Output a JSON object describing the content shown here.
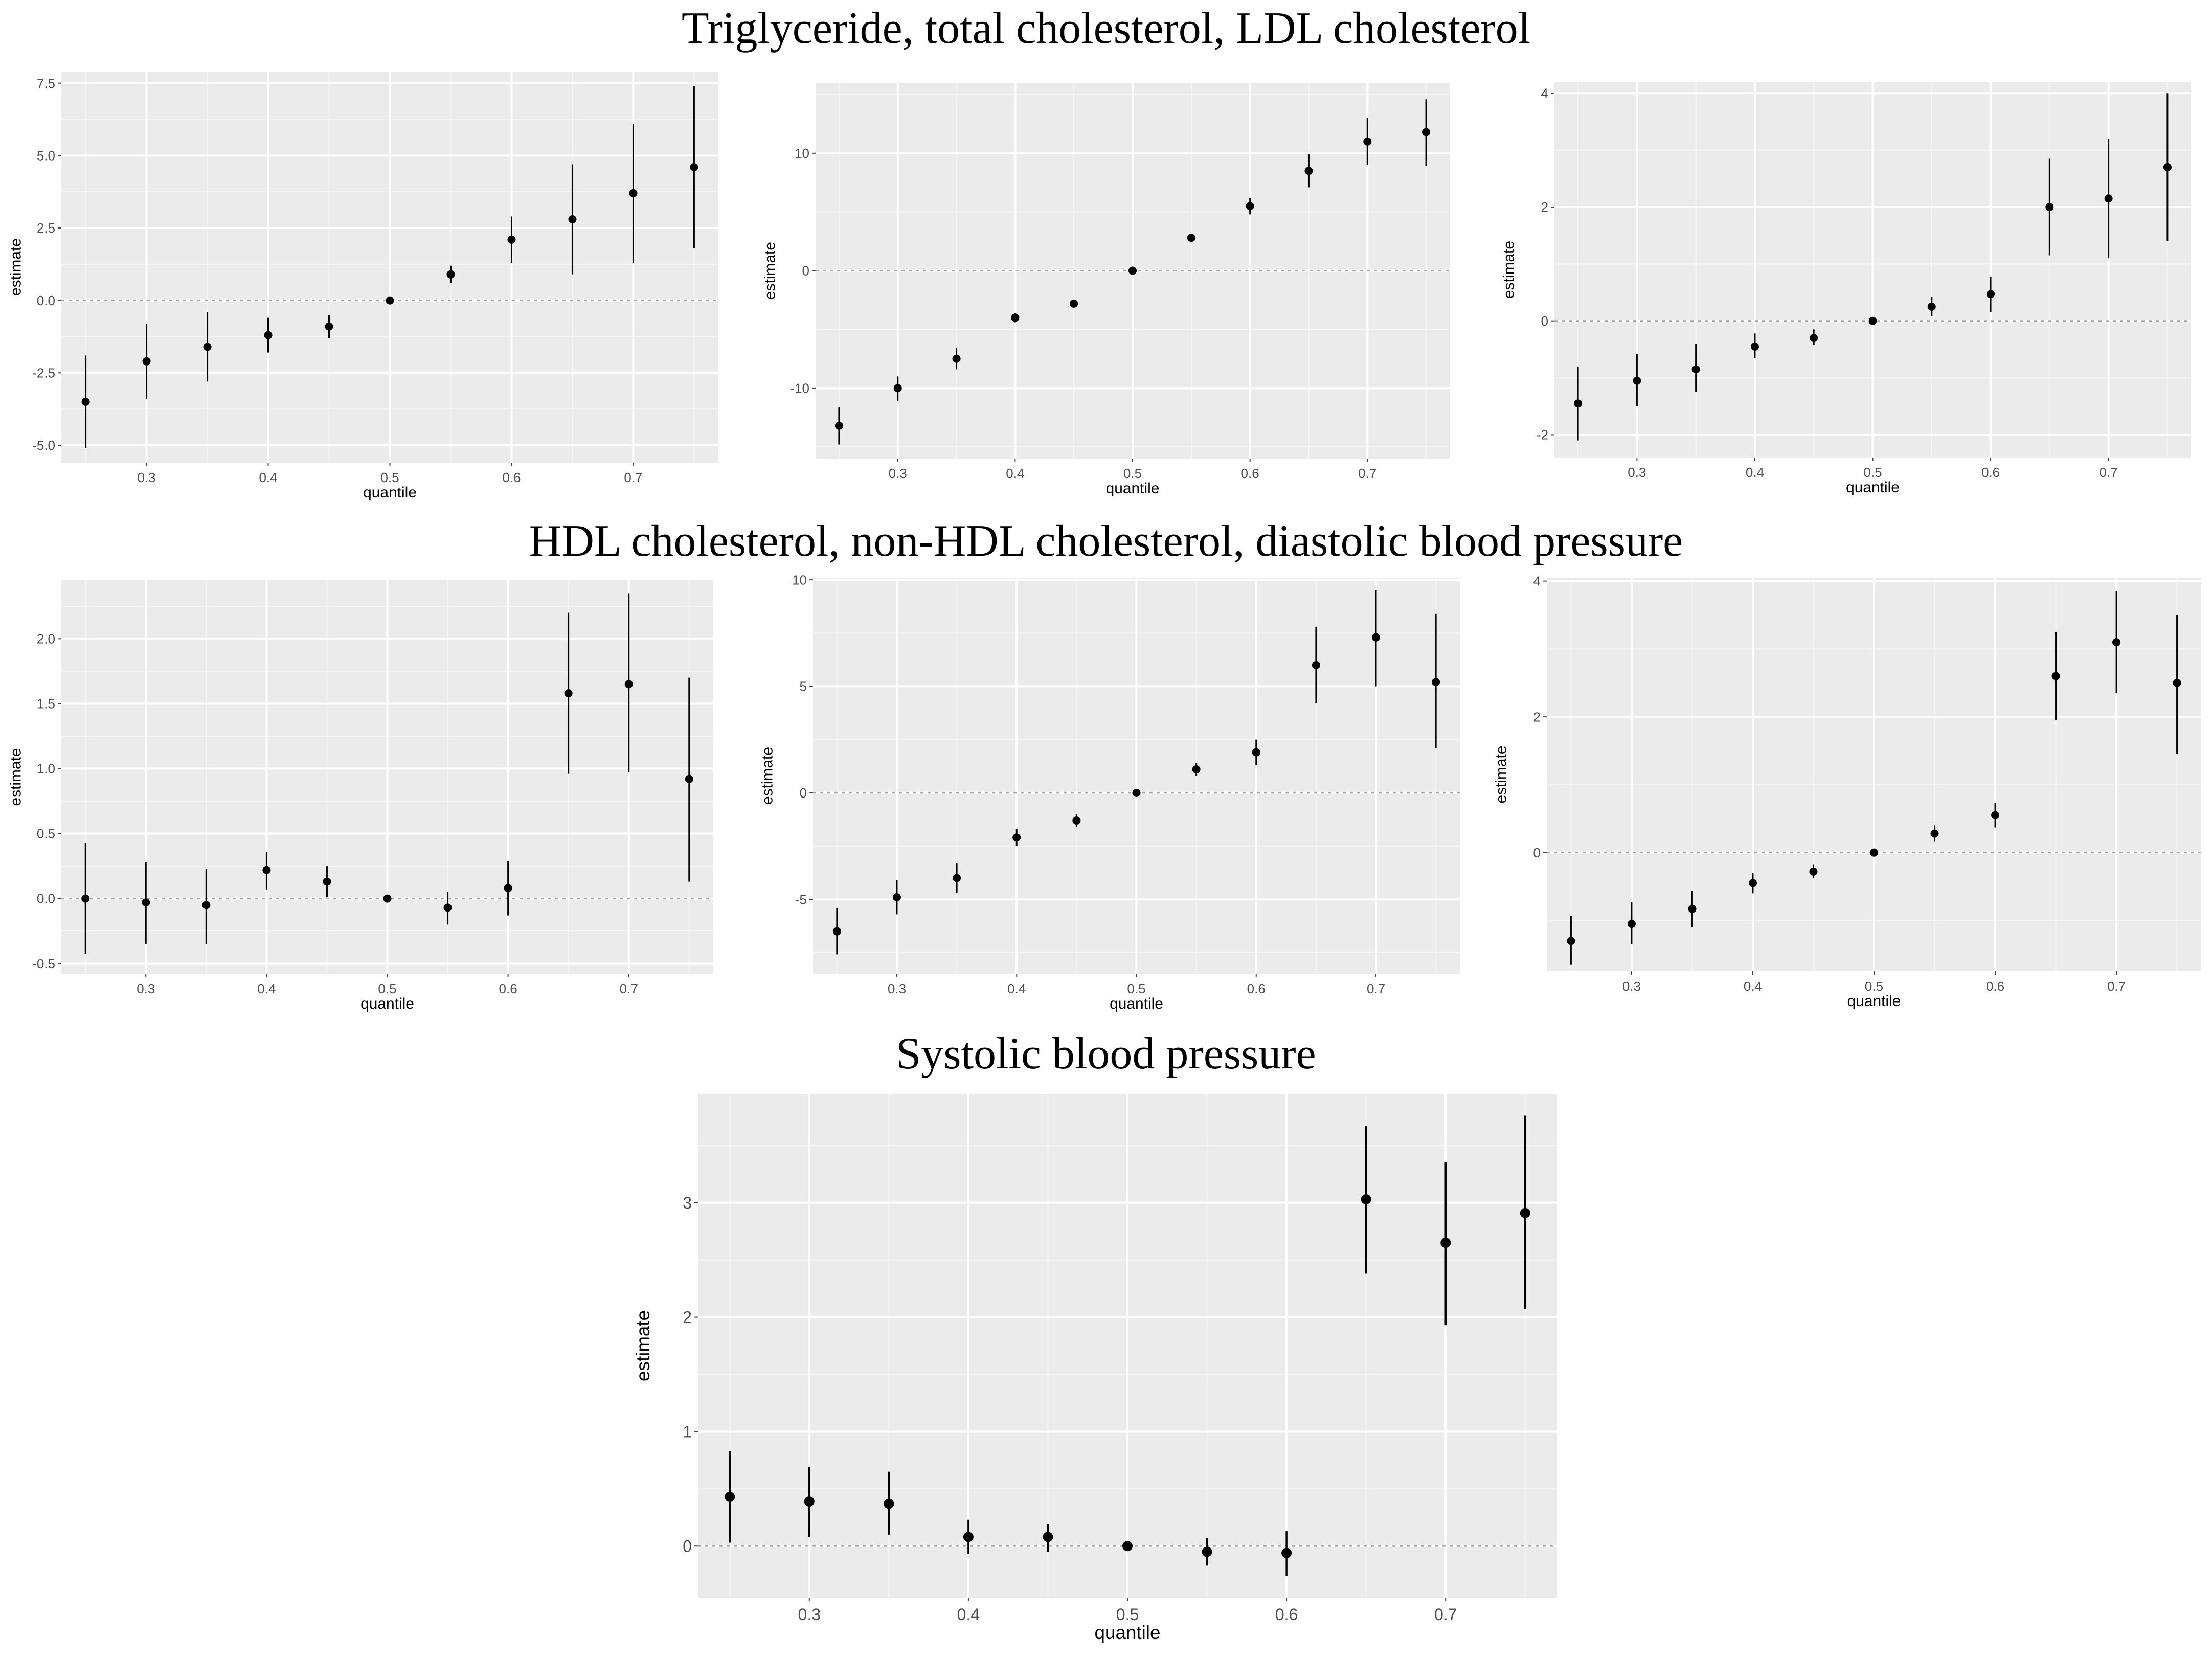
{
  "titles": {
    "row1": "Triglyceride, total cholesterol, LDL cholesterol",
    "row2": "HDL cholesterol, non-HDL cholesterol, diastolic blood pressure",
    "row3": "Systolic blood pressure"
  },
  "chart_data": [
    {
      "type": "scatter",
      "panel": "triglyceride",
      "xlabel": "quantile",
      "ylabel": "estimate",
      "xlim": [
        0.23,
        0.77
      ],
      "ylim": [
        -5.6,
        7.9
      ],
      "xticks": [
        "0.3",
        "0.4",
        "0.5",
        "0.6",
        "0.7"
      ],
      "yticks": [
        "-5.0",
        "-2.5",
        "0.0",
        "2.5",
        "5.0",
        "7.5"
      ],
      "x": [
        0.25,
        0.3,
        0.35,
        0.4,
        0.45,
        0.5,
        0.55,
        0.6,
        0.65,
        0.7,
        0.75
      ],
      "estimate": [
        -3.5,
        -2.1,
        -1.6,
        -1.2,
        -0.9,
        0.0,
        0.9,
        2.1,
        2.8,
        3.7,
        4.6
      ],
      "lower": [
        -5.1,
        -3.4,
        -2.8,
        -1.8,
        -1.3,
        0.0,
        0.6,
        1.3,
        0.9,
        1.3,
        1.8
      ],
      "upper": [
        -1.9,
        -0.8,
        -0.4,
        -0.6,
        -0.5,
        0.0,
        1.2,
        2.9,
        4.7,
        6.1,
        7.4
      ]
    },
    {
      "type": "scatter",
      "panel": "total cholesterol",
      "xlabel": "quantile",
      "ylabel": "estimate",
      "xlim": [
        0.23,
        0.77
      ],
      "ylim": [
        -16,
        16
      ],
      "xticks": [
        "0.3",
        "0.4",
        "0.5",
        "0.6",
        "0.7"
      ],
      "yticks": [
        "-10",
        "0",
        "10"
      ],
      "x": [
        0.25,
        0.3,
        0.35,
        0.4,
        0.45,
        0.5,
        0.55,
        0.6,
        0.65,
        0.7,
        0.75
      ],
      "estimate": [
        -13.2,
        -10.0,
        -7.5,
        -4.0,
        -2.8,
        0.0,
        2.8,
        5.5,
        8.5,
        11.0,
        11.8
      ],
      "lower": [
        -14.8,
        -11.1,
        -8.4,
        -4.4,
        -3.1,
        0.0,
        2.5,
        4.8,
        7.1,
        9.0,
        8.9
      ],
      "upper": [
        -11.6,
        -9.0,
        -6.6,
        -3.6,
        -2.5,
        0.0,
        3.1,
        6.2,
        9.9,
        13.0,
        14.6
      ]
    },
    {
      "type": "scatter",
      "panel": "LDL cholesterol",
      "xlabel": "quantile",
      "ylabel": "estimate",
      "xlim": [
        0.23,
        0.77
      ],
      "ylim": [
        -2.4,
        4.2
      ],
      "xticks": [
        "0.3",
        "0.4",
        "0.5",
        "0.6",
        "0.7"
      ],
      "yticks": [
        "-2",
        "0",
        "2",
        "4"
      ],
      "x": [
        0.25,
        0.3,
        0.35,
        0.4,
        0.45,
        0.5,
        0.55,
        0.6,
        0.65,
        0.7,
        0.75
      ],
      "estimate": [
        -1.45,
        -1.05,
        -0.85,
        -0.45,
        -0.3,
        0.0,
        0.25,
        0.47,
        2.0,
        2.15,
        2.7
      ],
      "lower": [
        -2.1,
        -1.5,
        -1.25,
        -0.65,
        -0.42,
        0.0,
        0.08,
        0.15,
        1.15,
        1.1,
        1.4
      ],
      "upper": [
        -0.8,
        -0.58,
        -0.4,
        -0.22,
        -0.15,
        0.0,
        0.42,
        0.78,
        2.85,
        3.2,
        4.0
      ]
    },
    {
      "type": "scatter",
      "panel": "HDL cholesterol",
      "xlabel": "quantile",
      "ylabel": "estimate",
      "xlim": [
        0.23,
        0.77
      ],
      "ylim": [
        -0.58,
        2.45
      ],
      "xticks": [
        "0.3",
        "0.4",
        "0.5",
        "0.6",
        "0.7"
      ],
      "yticks": [
        "-0.5",
        "0.0",
        "0.5",
        "1.0",
        "1.5",
        "2.0"
      ],
      "x": [
        0.25,
        0.3,
        0.35,
        0.4,
        0.45,
        0.5,
        0.55,
        0.6,
        0.65,
        0.7,
        0.75
      ],
      "estimate": [
        0.0,
        -0.03,
        -0.05,
        0.22,
        0.13,
        0.0,
        -0.07,
        0.08,
        1.58,
        1.65,
        0.92
      ],
      "lower": [
        -0.43,
        -0.35,
        -0.35,
        0.07,
        0.01,
        0.0,
        -0.2,
        -0.13,
        0.96,
        0.97,
        0.13
      ],
      "upper": [
        0.43,
        0.28,
        0.23,
        0.36,
        0.25,
        0.0,
        0.05,
        0.29,
        2.2,
        2.35,
        1.7
      ]
    },
    {
      "type": "scatter",
      "panel": "non-HDL cholesterol",
      "xlabel": "quantile",
      "ylabel": "estimate",
      "xlim": [
        0.23,
        0.77
      ],
      "ylim": [
        -8.5,
        10.1
      ],
      "xticks": [
        "0.3",
        "0.4",
        "0.5",
        "0.6",
        "0.7"
      ],
      "yticks": [
        "-5",
        "0",
        "5",
        "10"
      ],
      "x": [
        0.25,
        0.3,
        0.35,
        0.4,
        0.45,
        0.5,
        0.55,
        0.6,
        0.65,
        0.7,
        0.75
      ],
      "estimate": [
        -6.5,
        -4.9,
        -4.0,
        -2.1,
        -1.3,
        0.0,
        1.1,
        1.9,
        6.0,
        7.3,
        5.2
      ],
      "lower": [
        -7.6,
        -5.7,
        -4.7,
        -2.5,
        -1.6,
        0.0,
        0.8,
        1.3,
        4.2,
        5.0,
        2.1
      ],
      "upper": [
        -5.4,
        -4.1,
        -3.3,
        -1.7,
        -1.0,
        0.0,
        1.4,
        2.5,
        7.8,
        9.5,
        8.4
      ]
    },
    {
      "type": "scatter",
      "panel": "diastolic blood pressure",
      "xlabel": "quantile",
      "ylabel": "estimate",
      "xlim": [
        0.23,
        0.77
      ],
      "ylim": [
        -1.75,
        4.05
      ],
      "xticks": [
        "0.3",
        "0.4",
        "0.5",
        "0.6",
        "0.7"
      ],
      "yticks": [
        "0",
        "2",
        "4"
      ],
      "x": [
        0.25,
        0.3,
        0.35,
        0.4,
        0.45,
        0.5,
        0.55,
        0.6,
        0.65,
        0.7,
        0.75
      ],
      "estimate": [
        -1.3,
        -1.05,
        -0.83,
        -0.45,
        -0.28,
        0.0,
        0.28,
        0.55,
        2.6,
        3.1,
        2.5
      ],
      "lower": [
        -1.65,
        -1.35,
        -1.1,
        -0.6,
        -0.38,
        0.0,
        0.16,
        0.37,
        1.95,
        2.35,
        1.45
      ],
      "upper": [
        -0.93,
        -0.73,
        -0.56,
        -0.3,
        -0.18,
        0.0,
        0.4,
        0.73,
        3.25,
        3.85,
        3.5
      ]
    },
    {
      "type": "scatter",
      "panel": "systolic blood pressure",
      "xlabel": "quantile",
      "ylabel": "estimate",
      "xlim": [
        0.23,
        0.77
      ],
      "ylim": [
        -0.45,
        3.95
      ],
      "xticks": [
        "0.3",
        "0.4",
        "0.5",
        "0.6",
        "0.7"
      ],
      "yticks": [
        "0",
        "1",
        "2",
        "3"
      ],
      "x": [
        0.25,
        0.3,
        0.35,
        0.4,
        0.45,
        0.5,
        0.55,
        0.6,
        0.65,
        0.7,
        0.75
      ],
      "estimate": [
        0.43,
        0.39,
        0.37,
        0.08,
        0.08,
        0.0,
        -0.05,
        -0.06,
        3.03,
        2.65,
        2.91
      ],
      "lower": [
        0.03,
        0.08,
        0.1,
        -0.07,
        -0.05,
        0.0,
        -0.17,
        -0.26,
        2.38,
        1.93,
        2.07
      ],
      "upper": [
        0.83,
        0.69,
        0.65,
        0.23,
        0.19,
        0.0,
        0.07,
        0.13,
        3.67,
        3.36,
        3.76
      ]
    }
  ]
}
